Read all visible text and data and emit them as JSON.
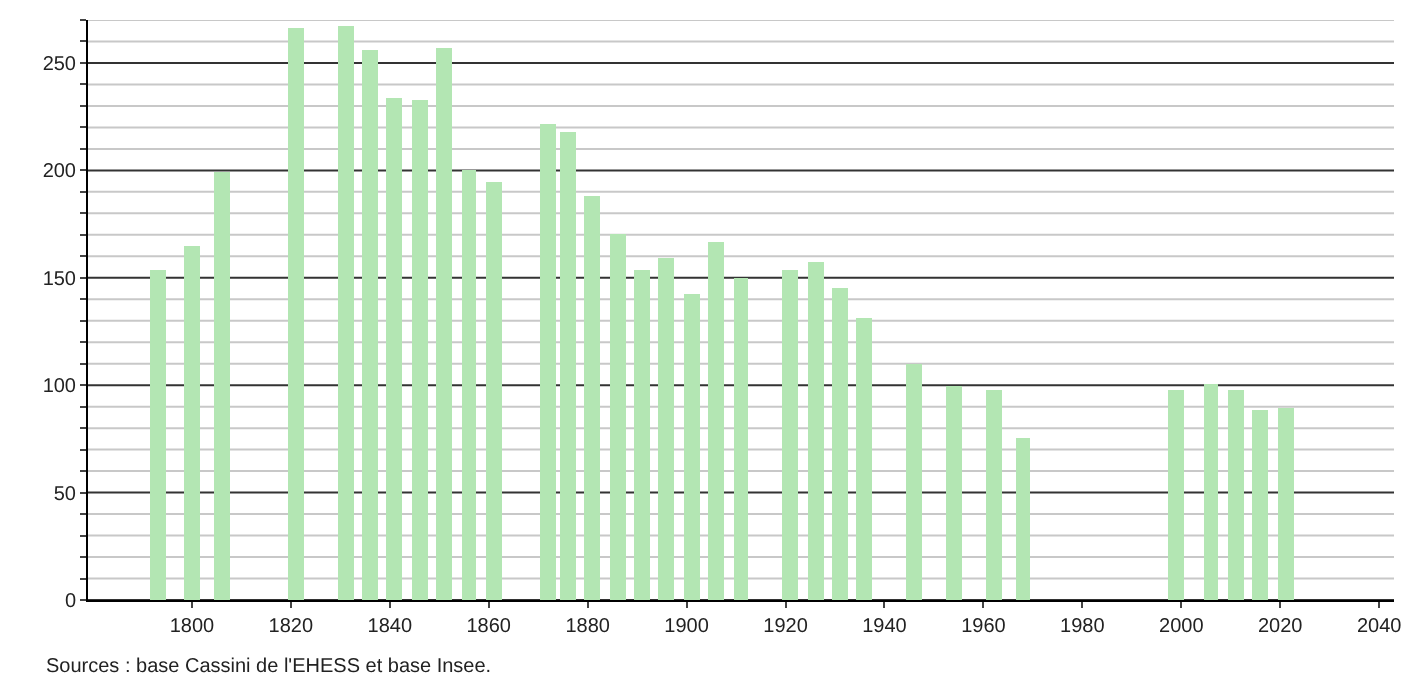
{
  "chart_data": {
    "type": "bar",
    "x": [
      1793,
      1800,
      1806,
      1821,
      1831,
      1836,
      1841,
      1846,
      1851,
      1856,
      1861,
      1872,
      1876,
      1881,
      1886,
      1891,
      1896,
      1901,
      1906,
      1911,
      1921,
      1926,
      1931,
      1936,
      1946,
      1954,
      1962,
      1968,
      1999,
      2006,
      2011,
      2016,
      2021
    ],
    "values": [
      154,
      165,
      199,
      266,
      267,
      256,
      234,
      233,
      257,
      200,
      195,
      222,
      218,
      188,
      170,
      154,
      159,
      142,
      167,
      150,
      154,
      157,
      145,
      131,
      110,
      100,
      98,
      75,
      98,
      101,
      98,
      88,
      89
    ],
    "color": "#b3e6b3",
    "xlim": [
      1779,
      2043
    ],
    "xticks": [
      1800,
      1820,
      1840,
      1860,
      1880,
      1900,
      1920,
      1940,
      1960,
      1980,
      2000,
      2020,
      2040
    ],
    "ylim": [
      0,
      270
    ],
    "yticks": [
      0,
      {
        "value": 10,
        "label": null
      },
      {
        "value": 20,
        "label": null
      },
      {
        "value": 30,
        "label": null
      },
      {
        "value": 40,
        "label": null
      },
      50,
      {
        "value": 60,
        "label": null
      },
      {
        "value": 70,
        "label": null
      },
      {
        "value": 80,
        "label": null
      },
      {
        "value": 90,
        "label": null
      },
      100,
      {
        "value": 110,
        "label": null
      },
      {
        "value": 120,
        "label": null
      },
      {
        "value": 130,
        "label": null
      },
      {
        "value": 140,
        "label": null
      },
      150,
      {
        "value": 160,
        "label": null
      },
      {
        "value": 170,
        "label": null
      },
      {
        "value": 180,
        "label": null
      },
      {
        "value": 190,
        "label": null
      },
      200,
      {
        "value": 210,
        "label": null
      },
      {
        "value": 220,
        "label": null
      },
      {
        "value": 230,
        "label": null
      },
      {
        "value": 240,
        "label": null
      },
      250,
      {
        "value": 260,
        "label": null
      },
      {
        "value": 270,
        "label": null
      }
    ],
    "grid": "y",
    "annotations": [
      "Sources : base Cassini de l'EHESS et base Insee."
    ]
  }
}
